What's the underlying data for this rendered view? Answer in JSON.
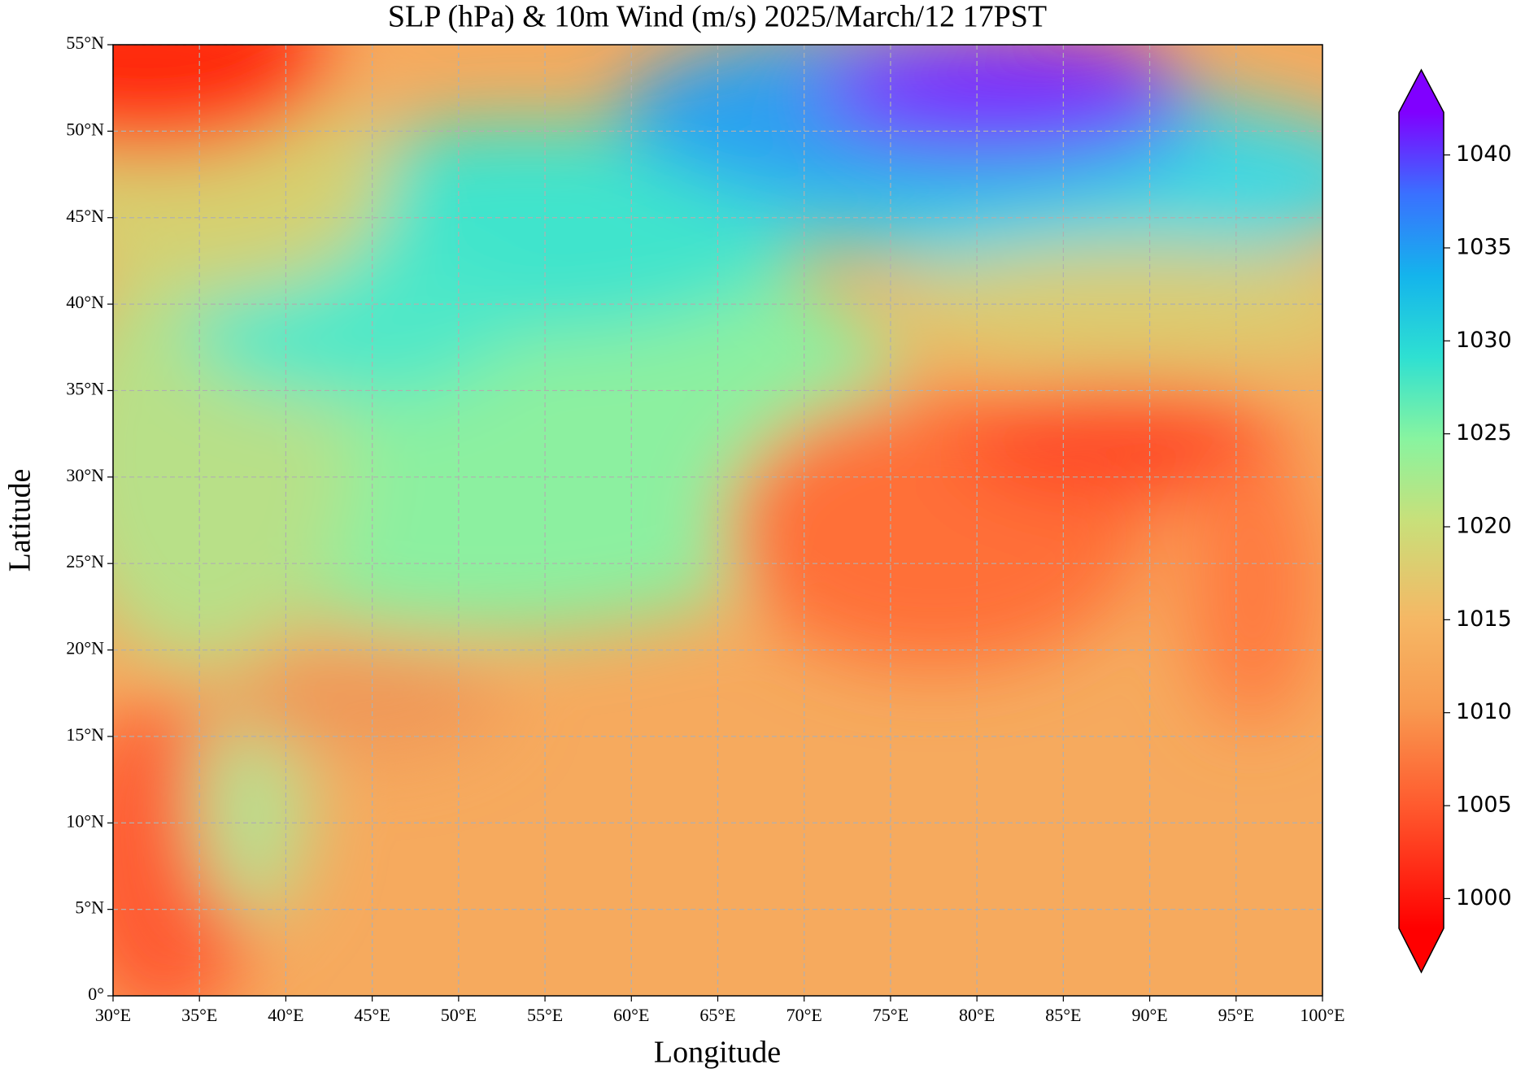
{
  "chart_data": {
    "type": "map",
    "title": "SLP (hPa) & 10m Wind (m/s)  2025/March/12  17PST",
    "x_label": "Longitude",
    "y_label": "Latitude",
    "xlim": [
      30,
      100
    ],
    "xticks": [
      {
        "value": 30,
        "label": "30°E"
      },
      {
        "value": 35,
        "label": "35°E"
      },
      {
        "value": 40,
        "label": "40°E"
      },
      {
        "value": 45,
        "label": "45°E"
      },
      {
        "value": 50,
        "label": "50°E"
      },
      {
        "value": 55,
        "label": "55°E"
      },
      {
        "value": 60,
        "label": "60°E"
      },
      {
        "value": 65,
        "label": "65°E"
      },
      {
        "value": 70,
        "label": "70°E"
      },
      {
        "value": 75,
        "label": "75°E"
      },
      {
        "value": 80,
        "label": "80°E"
      },
      {
        "value": 85,
        "label": "85°E"
      },
      {
        "value": 90,
        "label": "90°E"
      },
      {
        "value": 95,
        "label": "95°E"
      },
      {
        "value": 100,
        "label": "100°E"
      }
    ],
    "ylim": [
      0,
      55
    ],
    "yticks": [
      {
        "value": 0,
        "label": "0°"
      },
      {
        "value": 5,
        "label": "5°N"
      },
      {
        "value": 10,
        "label": "10°N"
      },
      {
        "value": 15,
        "label": "15°N"
      },
      {
        "value": 20,
        "label": "20°N"
      },
      {
        "value": 25,
        "label": "25°N"
      },
      {
        "value": 30,
        "label": "30°N"
      },
      {
        "value": 35,
        "label": "35°N"
      },
      {
        "value": 40,
        "label": "40°N"
      },
      {
        "value": 45,
        "label": "45°N"
      },
      {
        "value": 50,
        "label": "50°N"
      },
      {
        "value": 55,
        "label": "55°N"
      }
    ],
    "grid": true,
    "colormap": "rainbow",
    "clim": [
      998.4,
      1042.3
    ],
    "cticks": [
      1000,
      1005,
      1010,
      1015,
      1020,
      1025,
      1030,
      1035,
      1040
    ]
  }
}
